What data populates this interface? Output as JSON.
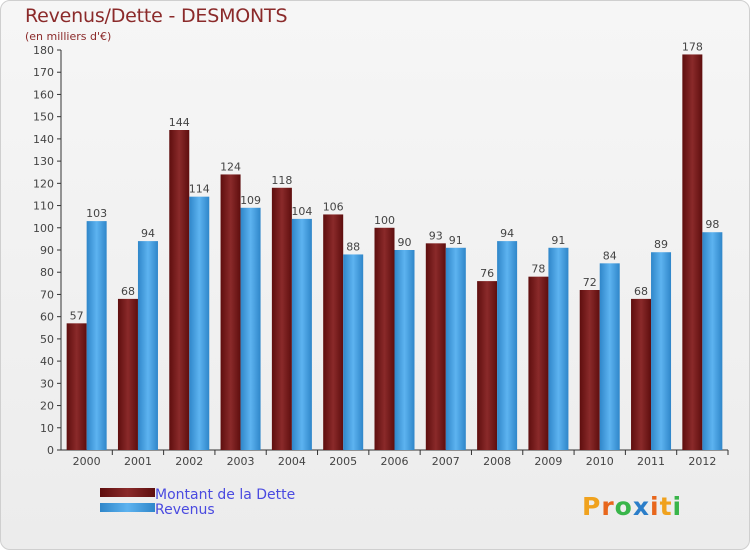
{
  "title": "Revenus/Dette - DESMONTS",
  "subtitle": "(en milliers d'€)",
  "logo_text": "Proxiti",
  "chart_data": {
    "type": "bar",
    "categories": [
      "2000",
      "2001",
      "2002",
      "2003",
      "2004",
      "2005",
      "2006",
      "2007",
      "2008",
      "2009",
      "2010",
      "2011",
      "2012"
    ],
    "series": [
      {
        "name": "Montant de la Dette",
        "color": "#7a1a1a",
        "values": [
          57,
          68,
          144,
          124,
          118,
          106,
          100,
          93,
          76,
          78,
          72,
          68,
          178
        ]
      },
      {
        "name": "Revenus",
        "color": "#4aa3e8",
        "values": [
          103,
          94,
          114,
          109,
          104,
          88,
          90,
          91,
          94,
          91,
          84,
          89,
          98
        ]
      }
    ],
    "ylim": [
      0,
      180
    ],
    "ytick_step": 10,
    "title": "Revenus/Dette - DESMONTS",
    "ylabel": "(en milliers d'€)",
    "legend": "bottom-left",
    "grid": false
  }
}
